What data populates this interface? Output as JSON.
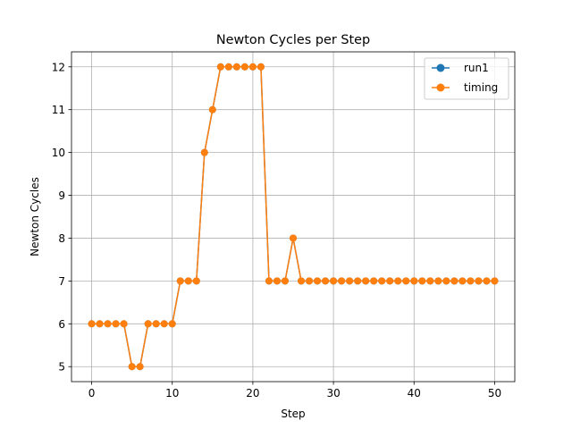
{
  "chart_data": {
    "type": "line",
    "title": "Newton Cycles per Step",
    "xlabel": "Step",
    "ylabel": "Newton Cycles",
    "xlim": [
      -2.5,
      52.5
    ],
    "ylim": [
      4.65,
      12.35
    ],
    "xticks": [
      0,
      10,
      20,
      30,
      40,
      50
    ],
    "yticks": [
      5,
      6,
      7,
      8,
      9,
      10,
      11,
      12
    ],
    "grid": true,
    "legend_position": "top-right",
    "x": [
      0,
      1,
      2,
      3,
      4,
      5,
      6,
      7,
      8,
      9,
      10,
      11,
      12,
      13,
      14,
      15,
      16,
      17,
      18,
      19,
      20,
      21,
      22,
      23,
      24,
      25,
      26,
      27,
      28,
      29,
      30,
      31,
      32,
      33,
      34,
      35,
      36,
      37,
      38,
      39,
      40,
      41,
      42,
      43,
      44,
      45,
      46,
      47,
      48,
      49,
      50
    ],
    "series": [
      {
        "name": "run1",
        "color": "#1f77b4",
        "values": [
          6,
          6,
          6,
          6,
          6,
          5,
          5,
          6,
          6,
          6,
          6,
          7,
          7,
          7,
          10,
          11,
          12,
          12,
          12,
          12,
          12,
          12,
          7,
          7,
          7,
          8,
          7,
          7,
          7,
          7,
          7,
          7,
          7,
          7,
          7,
          7,
          7,
          7,
          7,
          7,
          7,
          7,
          7,
          7,
          7,
          7,
          7,
          7,
          7,
          7,
          7
        ]
      },
      {
        "name": "timing",
        "color": "#ff7f0e",
        "values": [
          6,
          6,
          6,
          6,
          6,
          5,
          5,
          6,
          6,
          6,
          6,
          7,
          7,
          7,
          10,
          11,
          12,
          12,
          12,
          12,
          12,
          12,
          7,
          7,
          7,
          8,
          7,
          7,
          7,
          7,
          7,
          7,
          7,
          7,
          7,
          7,
          7,
          7,
          7,
          7,
          7,
          7,
          7,
          7,
          7,
          7,
          7,
          7,
          7,
          7,
          7
        ]
      }
    ]
  }
}
